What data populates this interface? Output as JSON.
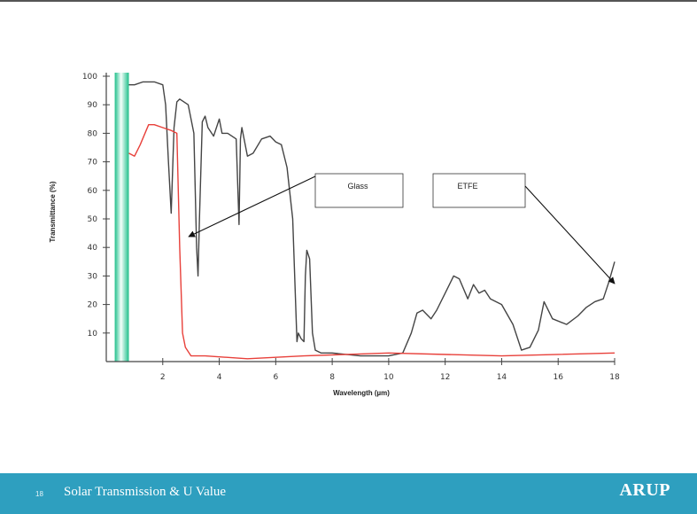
{
  "chart_data": {
    "type": "line",
    "xlabel": "Wavelength (µm)",
    "ylabel": "Transmittance (%)",
    "xlim": [
      0,
      18
    ],
    "ylim": [
      0,
      100
    ],
    "x_ticks": [
      2,
      4,
      6,
      8,
      10,
      12,
      14,
      16,
      18
    ],
    "y_ticks": [
      10,
      20,
      30,
      40,
      50,
      60,
      70,
      80,
      90,
      100
    ],
    "highlight_band": {
      "x_range": [
        0.3,
        0.8
      ],
      "color": "#1fbf8a"
    },
    "series": [
      {
        "name": "ETFE",
        "color": "#444444",
        "x": [
          0.8,
          1.0,
          1.3,
          1.7,
          2.0,
          2.1,
          2.2,
          2.3,
          2.4,
          2.5,
          2.6,
          2.9,
          3.1,
          3.2,
          3.25,
          3.3,
          3.4,
          3.5,
          3.6,
          3.8,
          4.0,
          4.1,
          4.3,
          4.6,
          4.7,
          4.75,
          4.8,
          5.0,
          5.2,
          5.5,
          5.8,
          6.0,
          6.2,
          6.4,
          6.6,
          6.75,
          6.8,
          6.9,
          7.0,
          7.05,
          7.1,
          7.2,
          7.3,
          7.4,
          7.6,
          8.0,
          9.0,
          10.0,
          10.5,
          10.8,
          11.0,
          11.2,
          11.5,
          11.7,
          12.0,
          12.3,
          12.5,
          12.8,
          13.0,
          13.2,
          13.4,
          13.6,
          14.0,
          14.4,
          14.7,
          15.0,
          15.3,
          15.5,
          15.8,
          16.3,
          16.7,
          17.0,
          17.3,
          17.6,
          17.8,
          18.0
        ],
        "y": [
          97,
          97,
          98,
          98,
          97,
          90,
          70,
          52,
          82,
          91,
          92,
          90,
          80,
          40,
          30,
          50,
          84,
          86,
          82,
          79,
          85,
          80,
          80,
          78,
          48,
          78,
          82,
          72,
          73,
          78,
          79,
          77,
          76,
          68,
          50,
          7,
          10,
          8,
          7,
          30,
          39,
          36,
          10,
          4,
          3,
          3,
          2,
          2,
          3,
          10,
          17,
          18,
          15,
          18,
          24,
          30,
          29,
          22,
          27,
          24,
          25,
          22,
          20,
          13,
          4,
          5,
          11,
          21,
          15,
          13,
          16,
          19,
          21,
          22,
          28,
          35
        ]
      },
      {
        "name": "Glass",
        "color": "#e8403a",
        "x": [
          0.8,
          1.0,
          1.2,
          1.5,
          1.7,
          2.0,
          2.3,
          2.5,
          2.6,
          2.7,
          2.8,
          3.0,
          3.5,
          5.0,
          7.0,
          10.0,
          14.0,
          18.0
        ],
        "y": [
          73,
          72,
          76,
          83,
          83,
          82,
          81,
          80,
          40,
          10,
          5,
          2,
          2,
          1,
          2,
          3,
          2,
          3
        ]
      }
    ],
    "annotations": [
      {
        "text": "Glass"
      },
      {
        "text": "ETFE"
      }
    ]
  },
  "footer": {
    "slide_number": "18",
    "title": "Solar Transmission  & U Value",
    "logo": "ARUP"
  }
}
